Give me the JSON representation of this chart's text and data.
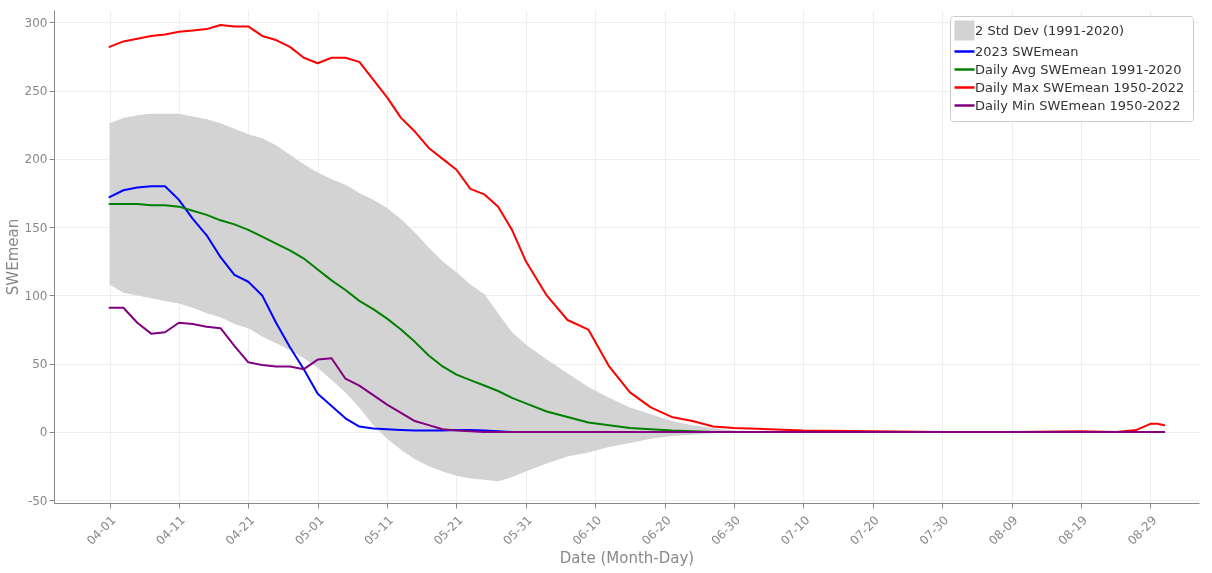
{
  "chart_data": {
    "type": "line",
    "xlabel": "Date (Month-Day)",
    "ylabel": "SWEmean",
    "x": [
      "--04-01",
      "--04-03",
      "--04-05",
      "--04-07",
      "--04-09",
      "--04-11",
      "--04-13",
      "--04-15",
      "--04-17",
      "--04-19",
      "--04-21",
      "--04-23",
      "--04-25",
      "--04-27",
      "--04-29",
      "--05-01",
      "--05-03",
      "--05-05",
      "--05-07",
      "--05-09",
      "--05-11",
      "--05-13",
      "--05-15",
      "--05-17",
      "--05-19",
      "--05-21",
      "--05-23",
      "--05-25",
      "--05-27",
      "--05-29",
      "--05-31",
      "--06-03",
      "--06-06",
      "--06-09",
      "--06-12",
      "--06-15",
      "--06-18",
      "--06-21",
      "--06-24",
      "--06-27",
      "--06-30",
      "--07-05",
      "--07-10",
      "--07-20",
      "--07-30",
      "--08-09",
      "--08-19",
      "--08-24",
      "--08-27",
      "--08-29",
      "--08-30",
      "--08-31"
    ],
    "series": [
      {
        "name": "2023 SWEmean",
        "color": "#0000ff",
        "values": [
          172,
          177,
          179,
          180,
          180,
          170,
          156,
          144,
          128,
          115,
          110,
          100,
          80,
          62,
          46,
          28,
          19,
          10,
          4,
          2.5,
          2,
          1.5,
          1,
          1,
          1,
          1.5,
          1.5,
          1,
          0.5,
          0,
          0,
          null,
          null,
          null,
          null,
          null,
          null,
          null,
          null,
          null,
          null,
          null,
          null,
          null,
          null,
          null,
          null,
          null,
          null,
          null,
          null,
          null
        ]
      },
      {
        "name": "Daily Avg SWEmean 1991-2020",
        "color": "#008000",
        "values": [
          167,
          167,
          167,
          166,
          166,
          165,
          162,
          159,
          155,
          152,
          148,
          143,
          138,
          133,
          127,
          119,
          111,
          104,
          96,
          90,
          83,
          75,
          66,
          56,
          48,
          42,
          38,
          34,
          30,
          25,
          21,
          15,
          11,
          7,
          5,
          3,
          2,
          1,
          0.5,
          0,
          0,
          null,
          null,
          null,
          null,
          null,
          null,
          null,
          null,
          null,
          null,
          null
        ],
        "lower": [
          108,
          102,
          100,
          98,
          96,
          94,
          91,
          87,
          84,
          79,
          76,
          70,
          65,
          60,
          54,
          47,
          38,
          29,
          18,
          5,
          -5,
          -13,
          -20,
          -25,
          -29,
          -32,
          -34,
          -35,
          -36,
          -33,
          -29,
          -23,
          -18,
          -15,
          -11,
          -8,
          -5,
          -3,
          -2,
          -1,
          0,
          0,
          0,
          0,
          0,
          0,
          0,
          0,
          0,
          0,
          0,
          0
        ],
        "upper": [
          226,
          230,
          232,
          233,
          233,
          233,
          231,
          229,
          226,
          222,
          218,
          215,
          210,
          203,
          196,
          190,
          185,
          181,
          175,
          170,
          164,
          156,
          146,
          135,
          125,
          117,
          108,
          101,
          87,
          73,
          64,
          53,
          43,
          33,
          25,
          18,
          13,
          8,
          5,
          3,
          1,
          0,
          0,
          0,
          0,
          0,
          0,
          0,
          0,
          0,
          0,
          0
        ]
      },
      {
        "name": "Daily Max SWEmean 1950-2022",
        "color": "#ff0000",
        "values": [
          282,
          286,
          288,
          290,
          291,
          293,
          294,
          295,
          298,
          297,
          297,
          290,
          287,
          282,
          274,
          270,
          274,
          274,
          271,
          258,
          245,
          230,
          220,
          208,
          200,
          192,
          178,
          174,
          165,
          148,
          125,
          100,
          82,
          75,
          48,
          29,
          18,
          11,
          8,
          4,
          3,
          2,
          1,
          0.5,
          0,
          0,
          0.5,
          0,
          1.5,
          6,
          6,
          5
        ]
      },
      {
        "name": "Daily Min SWEmean 1950-2022",
        "color": "#800080",
        "values": [
          91,
          91,
          80,
          72,
          73,
          80,
          79,
          77,
          76,
          63,
          51,
          49,
          48,
          48,
          46,
          53,
          54,
          39,
          34,
          27,
          20,
          14,
          8,
          5,
          2,
          1,
          0.5,
          0,
          0,
          0,
          0,
          0,
          0,
          0,
          0,
          0,
          0,
          0,
          0,
          0,
          0,
          0,
          0,
          0,
          0,
          0,
          0,
          0,
          0,
          0,
          0,
          0
        ]
      }
    ],
    "annotations": [
      "2 Std Dev (1991-2020)"
    ],
    "xlim": [
      "--03-24",
      "--09-05"
    ],
    "xticks": [
      {
        "value": "--04-01",
        "label": "04-01"
      },
      {
        "value": "--04-11",
        "label": "04-11"
      },
      {
        "value": "--04-21",
        "label": "04-21"
      },
      {
        "value": "--05-01",
        "label": "05-01"
      },
      {
        "value": "--05-11",
        "label": "05-11"
      },
      {
        "value": "--05-21",
        "label": "05-21"
      },
      {
        "value": "--05-31",
        "label": "05-31"
      },
      {
        "value": "--06-10",
        "label": "06-10"
      },
      {
        "value": "--06-20",
        "label": "06-20"
      },
      {
        "value": "--06-30",
        "label": "06-30"
      },
      {
        "value": "--07-10",
        "label": "07-10"
      },
      {
        "value": "--07-20",
        "label": "07-20"
      },
      {
        "value": "--07-30",
        "label": "07-30"
      },
      {
        "value": "--08-09",
        "label": "08-09"
      },
      {
        "value": "--08-19",
        "label": "08-19"
      },
      {
        "value": "--08-29",
        "label": "08-29"
      }
    ],
    "ylim": [
      -52,
      309
    ],
    "yticks": [
      -50,
      0,
      50,
      100,
      150,
      200,
      250,
      300
    ],
    "grid": true,
    "legend": "top right",
    "line_style": "solid",
    "marker": "none"
  }
}
